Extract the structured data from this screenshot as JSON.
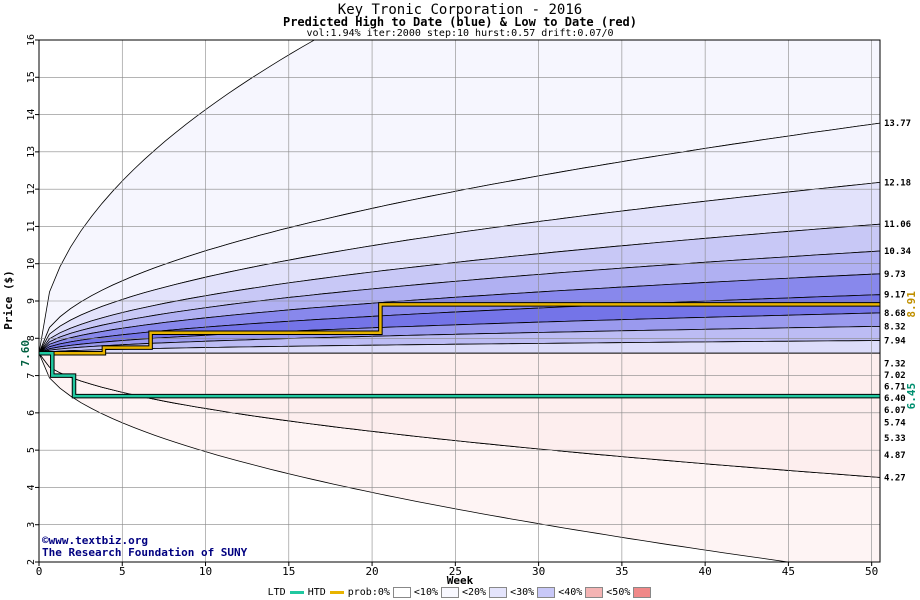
{
  "header": {
    "title": "Key Tronic Corporation - 2016",
    "subtitle": "Predicted High to Date (blue) &  Low to Date (red)",
    "params": "vol:1.94% iter:2000 step:10 hurst:0.57 drift:0.07/0"
  },
  "credit": {
    "line1": "©www.textbiz.org",
    "line2": "The Research Foundation of SUNY"
  },
  "legend": {
    "ltd": "LTD",
    "htd": "HTD",
    "prob": "prob:0%",
    "items": [
      "<10%",
      "<20%",
      "<30%",
      "<40%",
      "<50%"
    ],
    "colors": [
      "#f8f8ff",
      "#e4e4fc",
      "#c8c8f8",
      "#f4b4b4",
      "#f08888"
    ]
  },
  "chart_data": {
    "type": "area",
    "xlabel": "Week",
    "ylabel": "Price ($)",
    "xlim": [
      0,
      50.5
    ],
    "ylim": [
      2,
      16
    ],
    "xticks": [
      0,
      5,
      10,
      15,
      20,
      25,
      30,
      35,
      40,
      45,
      50
    ],
    "yticks": [
      2,
      3,
      4,
      5,
      6,
      7,
      8,
      9,
      10,
      11,
      12,
      13,
      14,
      15,
      16
    ],
    "grid": true,
    "start_price": 7.6,
    "start_label": "7.60",
    "upper_bands": [
      {
        "end": 13.77,
        "label": "13.77",
        "outer": 15.6,
        "fill": "#f4f4fe"
      },
      {
        "end": 12.18,
        "label": "12.18",
        "fill": "#e2e2fb"
      },
      {
        "end": 11.06,
        "label": "11.06",
        "fill": "#c8c8f6"
      },
      {
        "end": 10.34,
        "label": "10.34",
        "fill": "#b0b0f2"
      },
      {
        "end": 9.73,
        "label": "9.73",
        "fill": "#8888ec"
      },
      {
        "end": 9.17,
        "label": "9.17",
        "fill": "#7474e8"
      },
      {
        "end": 8.68,
        "label": "8.68",
        "fill": "#9a9aee"
      },
      {
        "end": 8.32,
        "label": "8.32",
        "fill": "#bcbcf4"
      },
      {
        "end": 7.94,
        "label": "7.94",
        "fill": "#dcdcfa"
      }
    ],
    "lower_bands": [
      {
        "end": 7.32,
        "label": "7.32",
        "fill": "#fde6e6"
      },
      {
        "end": 7.02,
        "label": "7.02",
        "fill": "#fbcccc"
      },
      {
        "end": 6.71,
        "label": "6.71",
        "fill": "#f7aaaa"
      },
      {
        "end": 6.4,
        "label": "6.40",
        "fill": "#f28888"
      },
      {
        "end": 6.07,
        "label": "6.07",
        "fill": "#f07878"
      },
      {
        "end": 5.74,
        "label": "5.74",
        "fill": "#f49c9c"
      },
      {
        "end": 5.33,
        "label": "5.33",
        "fill": "#f8bcbc"
      },
      {
        "end": 4.87,
        "label": "4.87",
        "fill": "#fbd6d6"
      },
      {
        "end": 4.27,
        "label": "4.27",
        "outer": 2.0,
        "fill": "#fdeeee"
      }
    ],
    "htd_series": {
      "label": "8.91",
      "points": [
        [
          0,
          7.6
        ],
        [
          3.9,
          7.6
        ],
        [
          3.9,
          7.75
        ],
        [
          6.7,
          7.75
        ],
        [
          6.7,
          8.15
        ],
        [
          20.5,
          8.15
        ],
        [
          20.5,
          8.91
        ],
        [
          50.5,
          8.91
        ]
      ]
    },
    "ltd_series": {
      "label": "6.45",
      "points": [
        [
          0,
          7.6
        ],
        [
          0.8,
          7.6
        ],
        [
          0.8,
          7.0
        ],
        [
          2.1,
          7.0
        ],
        [
          2.1,
          6.45
        ],
        [
          50.5,
          6.45
        ]
      ]
    }
  }
}
